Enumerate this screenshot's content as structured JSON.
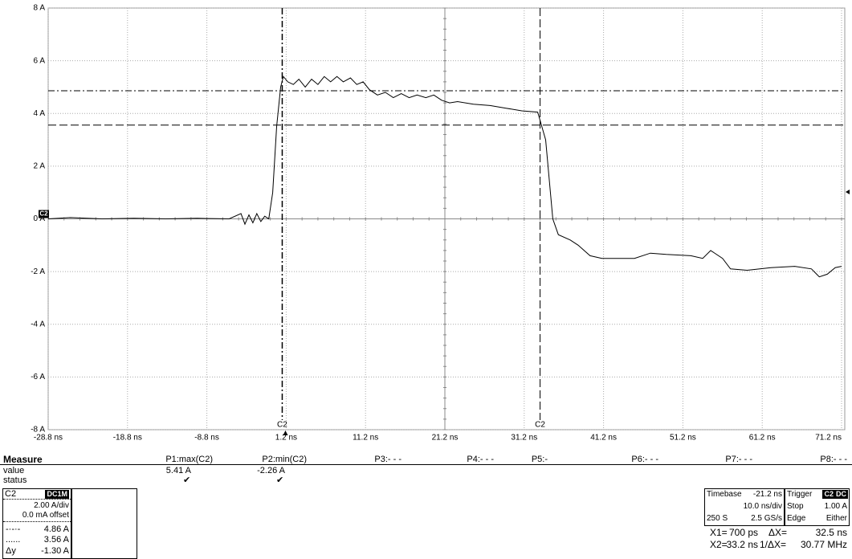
{
  "chart_data": {
    "type": "line",
    "x": [
      -28.8,
      -26,
      -22,
      -18,
      -14,
      -10,
      -6,
      -4.5,
      -4.0,
      -3.5,
      -3.0,
      -2.5,
      -2.0,
      -1.5,
      -1.0,
      -0.5,
      0.0,
      0.5,
      0.85,
      1.4,
      2.1,
      2.8,
      3.6,
      4.4,
      5.2,
      6.0,
      6.8,
      7.6,
      8.4,
      9.3,
      10.1,
      10.9,
      11.7,
      12.7,
      13.7,
      14.7,
      15.7,
      16.7,
      17.7,
      18.8,
      19.8,
      20.8,
      21.8,
      22.8,
      24.8,
      26.9,
      28.9,
      30.9,
      32.9,
      33.9,
      34.8,
      35.5,
      37.0,
      38.0,
      39.5,
      41.0,
      43.1,
      45.1,
      47.1,
      49.1,
      52.2,
      53.7,
      54.7,
      56.2,
      57.2,
      59.3,
      62.3,
      65.3,
      67.4,
      68.4,
      69.4,
      70.4,
      71.2
    ],
    "series": [
      {
        "name": "C2",
        "color": "#000000",
        "values": [
          0,
          0.05,
          0,
          0.02,
          0,
          0.02,
          0,
          0.2,
          -0.2,
          0.15,
          -0.15,
          0.2,
          -0.1,
          0.1,
          0,
          1.0,
          3.5,
          5.0,
          5.4,
          5.2,
          5.1,
          5.3,
          5.0,
          5.3,
          5.1,
          5.4,
          5.2,
          5.4,
          5.2,
          5.35,
          5.1,
          5.2,
          4.9,
          4.7,
          4.8,
          4.6,
          4.75,
          4.6,
          4.7,
          4.6,
          4.7,
          4.5,
          4.4,
          4.45,
          4.35,
          4.3,
          4.2,
          4.1,
          4.05,
          3.0,
          0,
          -0.6,
          -0.8,
          -1.0,
          -1.4,
          -1.5,
          -1.5,
          -1.5,
          -1.3,
          -1.35,
          -1.4,
          -1.5,
          -1.2,
          -1.5,
          -1.9,
          -1.95,
          -1.85,
          -1.8,
          -1.9,
          -2.2,
          -2.1,
          -1.85,
          -1.8
        ]
      }
    ],
    "xlim": [
      -28.8,
      71.2
    ],
    "xticks": [
      {
        "value": -28.8,
        "label": "-28.8 ns"
      },
      {
        "value": -18.8,
        "label": "-18.8 ns"
      },
      {
        "value": -8.8,
        "label": "-8.8 ns"
      },
      {
        "value": 1.2,
        "label": "1.2 ns"
      },
      {
        "value": 11.2,
        "label": "11.2 ns"
      },
      {
        "value": 21.2,
        "label": "21.2 ns"
      },
      {
        "value": 31.2,
        "label": "31.2 ns"
      },
      {
        "value": 41.2,
        "label": "41.2 ns"
      },
      {
        "value": 51.2,
        "label": "51.2 ns"
      },
      {
        "value": 61.2,
        "label": "61.2 ns"
      },
      {
        "value": 71.2,
        "label": "71.2 ns"
      }
    ],
    "ylim": [
      -8,
      8
    ],
    "yticks": [
      {
        "value": -8,
        "label": "-8 A"
      },
      {
        "value": -6,
        "label": "-6 A"
      },
      {
        "value": -4,
        "label": "-4 A"
      },
      {
        "value": -2,
        "label": "-2 A"
      },
      {
        "value": 0,
        "label": "0 A"
      },
      {
        "value": 2,
        "label": "2 A"
      },
      {
        "value": 4,
        "label": "4 A"
      },
      {
        "value": 6,
        "label": "6 A"
      },
      {
        "value": 8,
        "label": "8 A"
      }
    ],
    "grid": true,
    "vcursors": [
      {
        "value": 0.7,
        "label": "700 ps"
      },
      {
        "value": 33.2,
        "label": "33.2 ns"
      }
    ],
    "hcursors": [
      {
        "value": 4.86,
        "label": "4.86 A"
      },
      {
        "value": 3.56,
        "label": "3.56 A"
      }
    ],
    "cursor_tag": "C2"
  },
  "measure": {
    "title": "Measure",
    "rows": [
      "value",
      "status"
    ],
    "params": [
      "P1:max(C2)",
      "P2:min(C2)",
      "P3:- - -",
      "P4:- - -",
      "P5:-",
      "P6:- - -",
      "P7:- - -",
      "P8:- - -"
    ],
    "values": [
      "5.41 A",
      "-2.26 A"
    ]
  },
  "channel": {
    "name": "C2",
    "coupling": "DC1M",
    "scale": "2.00 A/div",
    "offset": "0.0 mA offset",
    "dy_label": "Δy",
    "dy": "-1.30 A"
  },
  "timebase": {
    "title": "Timebase",
    "delay": "-21.2 ns",
    "div": "10.0 ns/div",
    "samples": "250 S",
    "rate": "2.5 GS/s"
  },
  "trigger": {
    "title": "Trigger",
    "source": "C2",
    "coupling": "DC",
    "mode": "Stop",
    "level": "1.00 A",
    "type": "Edge",
    "slope": "Either"
  },
  "readout": {
    "x1": "X1=",
    "x2": "X2=",
    "dx_label": "ΔX=",
    "dx": "32.5 ns",
    "inv_label": "1/ΔX=",
    "inv": "30.77 MHz"
  }
}
